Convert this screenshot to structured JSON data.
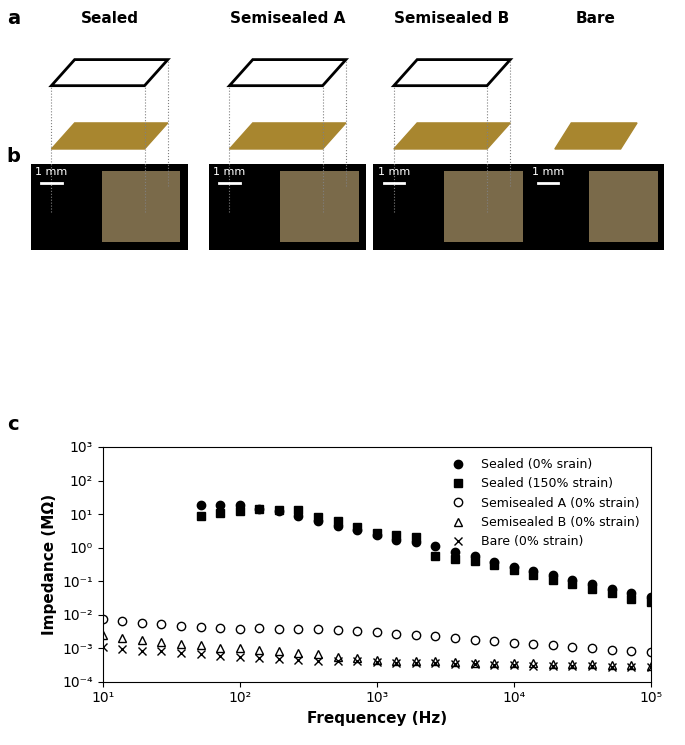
{
  "panel_labels": [
    "a",
    "b",
    "c"
  ],
  "columns": [
    "Sealed",
    "Semisealed A",
    "Semisealed B",
    "Bare"
  ],
  "scale_bar": "1 mm",
  "chart_data": {
    "type": "scatter",
    "x_label": "Frequencey (Hz)",
    "y_label": "Impedance (MΩ)",
    "log": true,
    "legend": "upper right",
    "xlim": [
      10,
      100000
    ],
    "ylim": [
      0.0001,
      1000
    ],
    "xticks": [
      {
        "value": 10,
        "label": "10¹"
      },
      {
        "value": 100,
        "label": "10²"
      },
      {
        "value": 1000,
        "label": "10³"
      },
      {
        "value": 10000,
        "label": "10⁴"
      },
      {
        "value": 100000,
        "label": "10⁵"
      }
    ],
    "yticks": [
      {
        "value": 0.0001,
        "label": "10⁻⁴"
      },
      {
        "value": 0.001,
        "label": "10⁻³"
      },
      {
        "value": 0.01,
        "label": "10⁻²"
      },
      {
        "value": 0.1,
        "label": "10⁻¹"
      },
      {
        "value": 1,
        "label": "10⁰"
      },
      {
        "value": 10,
        "label": "10¹"
      },
      {
        "value": 100,
        "label": "10²"
      },
      {
        "value": 1000,
        "label": "10³"
      }
    ],
    "x": [
      10,
      13.9,
      19.3,
      26.8,
      37.3,
      51.8,
      72,
      100,
      139,
      193,
      268,
      373,
      518,
      720,
      1000,
      1390,
      1930,
      2680,
      3730,
      5180,
      7200,
      10000,
      13900,
      19300,
      26800,
      37300,
      51800,
      72000,
      100000
    ],
    "series": [
      {
        "name": "Sealed (0% srain)",
        "color": "black",
        "marker": "filled_circle",
        "values": [
          null,
          null,
          null,
          null,
          null,
          18,
          19,
          19,
          14,
          12,
          8.5,
          6,
          4.5,
          3.3,
          2.4,
          1.7,
          1.5,
          1.1,
          0.75,
          0.55,
          0.38,
          0.27,
          0.2,
          0.15,
          0.11,
          0.08,
          0.06,
          0.045,
          0.033
        ]
      },
      {
        "name": "Sealed (150% strain)",
        "color": "black",
        "marker": "filled_square",
        "values": [
          null,
          null,
          null,
          null,
          null,
          9,
          11,
          12,
          14,
          13,
          13,
          8,
          6,
          4,
          2.8,
          2.3,
          2,
          0.55,
          0.45,
          0.4,
          0.3,
          0.22,
          0.15,
          0.11,
          0.08,
          0.06,
          0.045,
          0.03,
          0.023
        ]
      },
      {
        "name": "Semisealed A (0% strain)",
        "color": "black",
        "marker": "open_circle",
        "values": [
          0.0075,
          0.0065,
          0.0058,
          0.0052,
          0.0045,
          0.0043,
          0.004,
          0.0038,
          0.004,
          0.0038,
          0.0037,
          0.0037,
          0.0035,
          0.0033,
          0.003,
          0.0027,
          0.0025,
          0.0023,
          0.002,
          0.0018,
          0.0016,
          0.0014,
          0.0013,
          0.0012,
          0.0011,
          0.001,
          0.0009,
          0.00085,
          0.00075
        ]
      },
      {
        "name": "Semisealed B (0% strain)",
        "color": "black",
        "marker": "open_triangle",
        "values": [
          0.0025,
          0.002,
          0.0018,
          0.0015,
          0.0013,
          0.0012,
          0.001,
          0.001,
          0.0009,
          0.0008,
          0.0007,
          0.00065,
          0.00055,
          0.0005,
          0.00045,
          0.00042,
          0.0004,
          0.0004,
          0.00038,
          0.00037,
          0.00036,
          0.00035,
          0.00035,
          0.00034,
          0.00033,
          0.00033,
          0.00032,
          0.00031,
          0.0003
        ]
      },
      {
        "name": "Bare (0% strain)",
        "color": "black",
        "marker": "cross",
        "values": [
          0.0011,
          0.00095,
          0.00085,
          0.0008,
          0.00072,
          0.00065,
          0.0006,
          0.00055,
          0.0005,
          0.00047,
          0.00045,
          0.00042,
          0.0004,
          0.0004,
          0.00038,
          0.00036,
          0.00035,
          0.00035,
          0.00034,
          0.00033,
          0.00032,
          0.00032,
          0.0003,
          0.0003,
          0.0003,
          0.00029,
          0.00028,
          0.00028,
          0.00027
        ]
      }
    ]
  }
}
